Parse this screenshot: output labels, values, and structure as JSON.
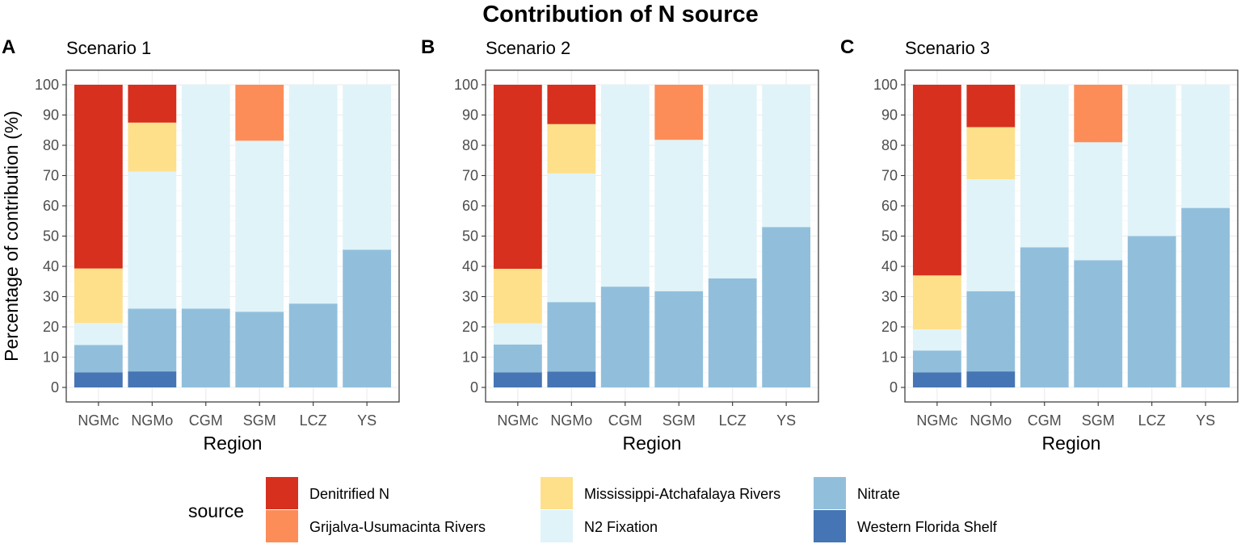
{
  "title": "Contribution of N source",
  "chart_data": {
    "type": "bar",
    "stacked": true,
    "ylabel": "Percentage of contribution (%)",
    "xlabel": "Region",
    "ylim": [
      0,
      100
    ],
    "yticks": [
      0,
      10,
      20,
      30,
      40,
      50,
      60,
      70,
      80,
      90,
      100
    ],
    "categories": [
      "NGMc",
      "NGMo",
      "CGM",
      "SGM",
      "LCZ",
      "YS"
    ],
    "legend": {
      "title": "source",
      "position": "bottom",
      "entries": [
        {
          "name": "Denitrified N",
          "color": "#d7301f"
        },
        {
          "name": "Grijalva-Usumacinta Rivers",
          "color": "#fc8d59"
        },
        {
          "name": "Mississippi-Atchafalaya Rivers",
          "color": "#fee08b"
        },
        {
          "name": "N2 Fixation",
          "color": "#e0f3f8"
        },
        {
          "name": "Nitrate",
          "color": "#91bfdb"
        },
        {
          "name": "Western Florida Shelf",
          "color": "#4575b4"
        }
      ]
    },
    "stack_order_bottom_to_top": [
      "Western Florida Shelf",
      "Nitrate",
      "N2 Fixation",
      "Mississippi-Atchafalaya Rivers",
      "Grijalva-Usumacinta Rivers",
      "Denitrified N"
    ],
    "panels": [
      {
        "letter": "A",
        "title": "Scenario 1",
        "series": [
          {
            "name": "Western Florida Shelf",
            "values": [
              5,
              5.3,
              0,
              0,
              0,
              0
            ]
          },
          {
            "name": "Nitrate",
            "values": [
              9,
              20.7,
              26,
              25,
              27.7,
              45.5
            ]
          },
          {
            "name": "N2 Fixation",
            "values": [
              7.3,
              45.3,
              74,
              56.5,
              72.3,
              54.5
            ]
          },
          {
            "name": "Mississippi-Atchafalaya Rivers",
            "values": [
              18,
              16.2,
              0,
              0,
              0,
              0
            ]
          },
          {
            "name": "Grijalva-Usumacinta Rivers",
            "values": [
              0,
              0,
              0,
              18.5,
              0,
              0
            ]
          },
          {
            "name": "Denitrified N",
            "values": [
              60.7,
              12.5,
              0,
              0,
              0,
              0
            ]
          }
        ]
      },
      {
        "letter": "B",
        "title": "Scenario 2",
        "series": [
          {
            "name": "Western Florida Shelf",
            "values": [
              5,
              5.2,
              0,
              0,
              0,
              0
            ]
          },
          {
            "name": "Nitrate",
            "values": [
              9.2,
              23,
              33.3,
              31.8,
              36,
              53
            ]
          },
          {
            "name": "N2 Fixation",
            "values": [
              7,
              42.5,
              66.7,
              50,
              64,
              47
            ]
          },
          {
            "name": "Mississippi-Atchafalaya Rivers",
            "values": [
              18,
              16.3,
              0,
              0,
              0,
              0
            ]
          },
          {
            "name": "Grijalva-Usumacinta Rivers",
            "values": [
              0,
              0,
              0,
              18.2,
              0,
              0
            ]
          },
          {
            "name": "Denitrified N",
            "values": [
              60.8,
              13,
              0,
              0,
              0,
              0
            ]
          }
        ]
      },
      {
        "letter": "C",
        "title": "Scenario 3",
        "series": [
          {
            "name": "Western Florida Shelf",
            "values": [
              5,
              5.3,
              0,
              0,
              0,
              0
            ]
          },
          {
            "name": "Nitrate",
            "values": [
              7.2,
              26.5,
              46.3,
              42,
              50,
              59.3
            ]
          },
          {
            "name": "N2 Fixation",
            "values": [
              7,
              37,
              53.7,
              39,
              50,
              40.7
            ]
          },
          {
            "name": "Mississippi-Atchafalaya Rivers",
            "values": [
              17.8,
              17.2,
              0,
              0,
              0,
              0
            ]
          },
          {
            "name": "Grijalva-Usumacinta Rivers",
            "values": [
              0,
              0,
              0,
              19,
              0,
              0
            ]
          },
          {
            "name": "Denitrified N",
            "values": [
              63,
              14,
              0,
              0,
              0,
              0
            ]
          }
        ]
      }
    ]
  }
}
